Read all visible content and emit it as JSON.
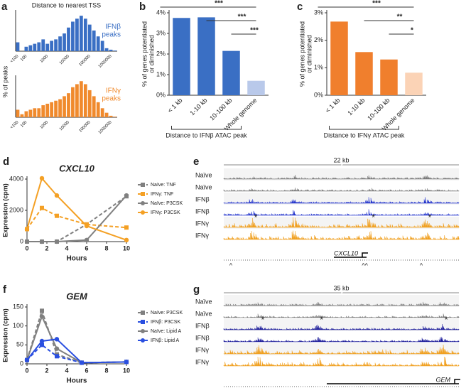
{
  "chart_data": [
    {
      "type": "bar",
      "panel_label": "a",
      "title": "Distance to nearest TSS",
      "label_lines": [
        "IFNβ",
        "peaks"
      ],
      "label_color": "#3a6fc4",
      "color": "#3a6fc4",
      "ylabel": "% of peaks",
      "categories": [
        "<100",
        null,
        "100",
        null,
        null,
        null,
        null,
        "1000",
        null,
        null,
        null,
        null,
        "10000",
        null,
        null,
        null,
        null,
        "100000",
        null,
        null,
        null,
        null,
        "1000000",
        null
      ],
      "values": [
        3,
        0,
        1.5,
        2,
        2.5,
        3,
        4,
        2.5,
        3.5,
        4,
        5,
        6,
        8,
        10,
        11,
        12,
        11,
        9,
        7,
        5,
        3.5,
        1,
        0.5,
        0.2
      ],
      "ylim": [
        0,
        13
      ]
    },
    {
      "type": "bar",
      "label_lines": [
        "IFNγ",
        "peaks"
      ],
      "label_color": "#f08a2d",
      "color": "#f08a2d",
      "categories": [
        "<100",
        null,
        "100",
        null,
        null,
        null,
        null,
        "1000",
        null,
        null,
        null,
        null,
        "10000",
        null,
        null,
        null,
        null,
        "100000",
        null,
        null,
        null,
        null,
        "1000000",
        null
      ],
      "values": [
        2.5,
        1,
        2,
        2.5,
        3,
        3,
        4,
        4.5,
        5,
        5.5,
        6,
        7,
        8,
        10,
        11,
        12,
        11,
        9,
        7,
        5,
        3,
        1.5,
        0.5,
        0.2
      ],
      "ylim": [
        0,
        13
      ]
    },
    {
      "type": "bar",
      "panel_label": "b",
      "ylabel_lines": [
        "% of genes potentiated",
        "or diminished"
      ],
      "xlabel": "Distance to IFNβ ATAC peak",
      "categories": [
        "< 1 kb",
        "1-10 kb",
        "10-100 kb",
        "Whole genome"
      ],
      "values": [
        3.75,
        3.78,
        2.15,
        0.7
      ],
      "colors": [
        "#3a6fc4",
        "#3a6fc4",
        "#3a6fc4",
        "#b9c9ea"
      ],
      "ylim": [
        0,
        4
      ],
      "yticks": [
        {
          "value": 0,
          "label": "0%"
        },
        {
          "value": 1,
          "label": "1%"
        },
        {
          "value": 2,
          "label": "2%"
        },
        {
          "value": 3,
          "label": "3%"
        },
        {
          "value": 4,
          "label": "4%"
        }
      ],
      "significance": [
        {
          "from": 0,
          "to": 3,
          "label": "***"
        },
        {
          "from": 1,
          "to": 3,
          "label": "***"
        },
        {
          "from": 2,
          "to": 3,
          "label": "***"
        }
      ]
    },
    {
      "type": "bar",
      "panel_label": "c",
      "ylabel_lines": [
        "% of genes potentiated",
        "or diminished"
      ],
      "xlabel": "Distance to IFNγ ATAC peak",
      "categories": [
        "< 1 kb",
        "1-10 kb",
        "10-100 kb",
        "Whole genome"
      ],
      "values": [
        2.68,
        1.57,
        1.3,
        0.82
      ],
      "colors": [
        "#f07f2d",
        "#f07f2d",
        "#f07f2d",
        "#fbd3b6"
      ],
      "ylim": [
        0,
        3
      ],
      "yticks": [
        {
          "value": 0,
          "label": "0%"
        },
        {
          "value": 1,
          "label": "1%"
        },
        {
          "value": 2,
          "label": "2%"
        },
        {
          "value": 3,
          "label": "3%"
        }
      ],
      "significance": [
        {
          "from": 0,
          "to": 3,
          "label": "***"
        },
        {
          "from": 1,
          "to": 3,
          "label": "**"
        },
        {
          "from": 2,
          "to": 3,
          "label": "*"
        }
      ]
    },
    {
      "type": "line",
      "panel_label": "d",
      "title": "CXCL10",
      "xlabel": "Hours",
      "ylabel": "Expression (cpm)",
      "x": [
        0,
        1.5,
        3,
        6,
        10
      ],
      "xlim": [
        0,
        10
      ],
      "xticks": [
        0,
        2,
        4,
        6,
        8,
        10
      ],
      "ylim": [
        0,
        4000
      ],
      "yticks": [
        0,
        2000,
        4000
      ],
      "series": [
        {
          "name": "Naïve: TNF",
          "color": "#808080",
          "dash": true,
          "marker": "square",
          "values": [
            0,
            0,
            0,
            1100,
            2900
          ]
        },
        {
          "name": "IFNγ: TNF",
          "color": "#f4a024",
          "dash": true,
          "marker": "square",
          "values": [
            800,
            2150,
            1650,
            1100,
            900
          ]
        },
        {
          "name": "Naïve: P3CSK",
          "color": "#808080",
          "dash": false,
          "marker": "circle",
          "values": [
            0,
            0,
            0,
            100,
            2950
          ]
        },
        {
          "name": "IFNγ: P3CSK",
          "color": "#f4a024",
          "dash": false,
          "marker": "circle",
          "values": [
            800,
            4050,
            2950,
            1000,
            100
          ]
        }
      ]
    },
    {
      "type": "line",
      "panel_label": "f",
      "title": "GEM",
      "xlabel": "Hours",
      "ylabel": "Expression (cpm)",
      "x": [
        0,
        1.5,
        3,
        5.5,
        10
      ],
      "xlim": [
        0,
        10
      ],
      "xticks": [
        0,
        2,
        4,
        6,
        8,
        10
      ],
      "ylim": [
        0,
        150
      ],
      "yticks": [
        0,
        50,
        100,
        150
      ],
      "series": [
        {
          "name": "Naïve: P3CSK",
          "color": "#808080",
          "dash": true,
          "marker": "square",
          "values": [
            10,
            140,
            25,
            3,
            5
          ]
        },
        {
          "name": "IFNβ: P3CSK",
          "color": "#2a4fe0",
          "dash": true,
          "marker": "square",
          "values": [
            10,
            50,
            20,
            3,
            5
          ]
        },
        {
          "name": "Naïve: Lipid A",
          "color": "#808080",
          "dash": false,
          "marker": "circle",
          "values": [
            10,
            125,
            40,
            3,
            5
          ]
        },
        {
          "name": "IFNβ: Lipid A",
          "color": "#2a4fe0",
          "dash": false,
          "marker": "circle",
          "values": [
            10,
            60,
            65,
            3,
            5
          ]
        }
      ]
    }
  ],
  "tracks": [
    {
      "panel_label": "e",
      "scale": "22 kb",
      "gene": "CXCL10",
      "tracks": [
        "Naïve",
        "Naïve",
        "IFNβ",
        "IFNβ",
        "IFNγ",
        "IFNγ"
      ],
      "colors": [
        "#777777",
        "#777777",
        "#2233cc",
        "#2233cc",
        "#f0a020",
        "#f0a020"
      ],
      "asterisks": [
        "*",
        "*",
        "*"
      ],
      "markers": [
        "^",
        "^^",
        "^"
      ]
    },
    {
      "panel_label": "g",
      "scale": "35 kb",
      "gene": "GEM",
      "tracks": [
        "Naïve",
        "Naïve",
        "IFNβ",
        "IFNβ",
        "IFNγ",
        "IFNγ"
      ],
      "colors": [
        "#777777",
        "#777777",
        "#1a1a99",
        "#1a1a99",
        "#f0a020",
        "#f0a020"
      ],
      "asterisks": [
        "*",
        "*",
        "*"
      ],
      "markers": [
        "^",
        "^"
      ]
    }
  ]
}
